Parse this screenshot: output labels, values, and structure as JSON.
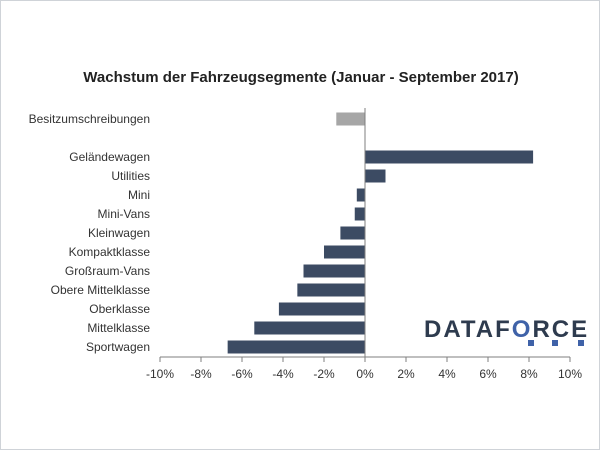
{
  "chart_data": {
    "type": "bar",
    "orientation": "horizontal",
    "title": "Wachstum der Fahrzeugsegmente (Januar - September 2017)",
    "categories": [
      "Besitzumschreibungen",
      "Geländewagen",
      "Utilities",
      "Mini",
      "Mini-Vans",
      "Kleinwagen",
      "Kompaktklasse",
      "Großraum-Vans",
      "Obere Mittelklasse",
      "Oberklasse",
      "Mittelklasse",
      "Sportwagen"
    ],
    "values": [
      -1.4,
      8.2,
      1.0,
      -0.4,
      -0.5,
      -1.2,
      -2.0,
      -3.0,
      -3.3,
      -4.2,
      -5.4,
      -6.7
    ],
    "bar_colors": [
      "#a6a6a6",
      "#3c4b63",
      "#3c4b63",
      "#3c4b63",
      "#3c4b63",
      "#3c4b63",
      "#3c4b63",
      "#3c4b63",
      "#3c4b63",
      "#3c4b63",
      "#3c4b63",
      "#3c4b63"
    ],
    "xlim": [
      -10,
      10
    ],
    "xticks": [
      -10,
      -8,
      -6,
      -4,
      -2,
      0,
      2,
      4,
      6,
      8,
      10
    ],
    "xtick_labels": [
      "-10%",
      "-8%",
      "-6%",
      "-4%",
      "-2%",
      "0%",
      "2%",
      "4%",
      "6%",
      "8%",
      "10%"
    ],
    "grid": false,
    "legend": "none"
  },
  "logo": {
    "text_main": "DATAF",
    "text_accent": "O",
    "text_tail": "RCE"
  },
  "colors": {
    "bar": "#3c4b63",
    "bar_highlight": "#a6a6a6",
    "axis": "#7f7f7f",
    "logo_accent": "#3f62a8"
  }
}
